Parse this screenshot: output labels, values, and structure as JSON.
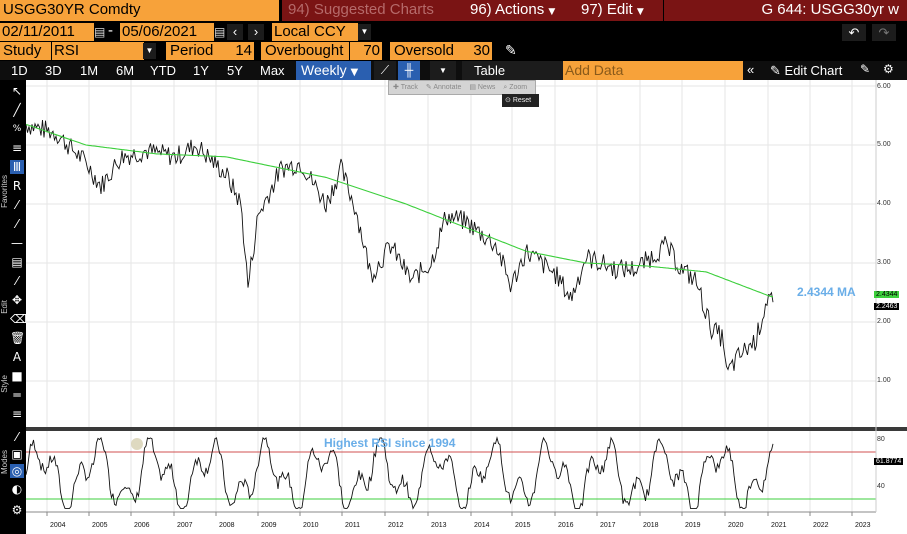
{
  "header": {
    "ticker": "USGG30YR Comdty",
    "suggested": "94) Suggested Charts",
    "actions": "96) Actions",
    "edit": "97) Edit",
    "title": "G 644: USGG30yr w"
  },
  "dates": {
    "start": "02/11/2011",
    "end": "05/06/2021",
    "currency": "Local CCY"
  },
  "study": {
    "label": "Study",
    "value": "RSI",
    "period_label": "Period",
    "period": "14",
    "overbought_label": "Overbought",
    "overbought": "70",
    "oversold_label": "Oversold",
    "oversold": "30"
  },
  "ranges": [
    "1D",
    "3D",
    "1M",
    "6M",
    "YTD",
    "1Y",
    "5Y",
    "Max"
  ],
  "frequency": "Weekly",
  "table_label": "Table",
  "add_data_placeholder": "Add Data",
  "edit_chart": "Edit Chart",
  "mini_toolbar": {
    "track": "Track",
    "annotate": "Annotate",
    "news": "News",
    "zoom": "Zoom",
    "reset": "Reset"
  },
  "annotations": {
    "ma_label": "2.4344 MA",
    "rsi_note": "Highest RSI since 1994"
  },
  "price_axis": {
    "ticks": [
      "6.00",
      "5.00",
      "4.00",
      "3.00",
      "2.00",
      "1.00"
    ],
    "ma_value": "2.4344",
    "last_value": "2.2463"
  },
  "rsi_axis": {
    "ticks": [
      "80",
      "40"
    ],
    "last_value": "61.8774"
  },
  "x_axis": {
    "ticks": [
      "2004",
      "2005",
      "2006",
      "2007",
      "2008",
      "2009",
      "2010",
      "2011",
      "2012",
      "2013",
      "2014",
      "2015",
      "2016",
      "2017",
      "2018",
      "2019",
      "2020",
      "2021",
      "2022",
      "2023"
    ]
  },
  "side_labels": {
    "favorites": "Favorites",
    "edit": "Edit",
    "style": "Style",
    "modes": "Modes"
  },
  "colors": {
    "orange": "#f7a23a",
    "red_tab": "#7a1414",
    "ma_line": "#3ccf3c",
    "ma_label": "#6aaee8",
    "overbought_line": "#d05050",
    "oversold_line": "#3ccf3c"
  }
}
